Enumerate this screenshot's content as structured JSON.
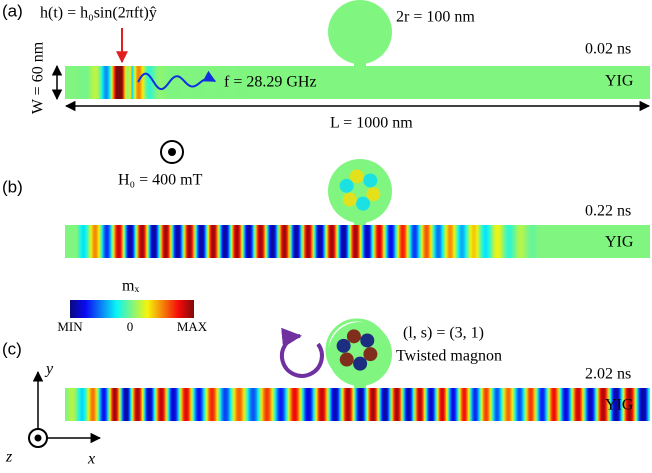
{
  "panels": [
    {
      "label": "(a)",
      "equation": "h(t)  =  h₀sin(2πft)ŷ",
      "diameter": "2r = 100 nm",
      "time": "0.02 ns",
      "material": "YIG",
      "width": "W = 60 nm",
      "frequency": "f = 28.29 GHz",
      "length": "L = 1000 nm"
    },
    {
      "label": "(b)",
      "field": "H₀ = 400 mT",
      "time": "0.22 ns",
      "material": "YIG"
    },
    {
      "label": "(c)",
      "mode": "(l, s) = (3, 1)",
      "mode_name": "Twisted magnon",
      "time": "2.02 ns",
      "material": "YIG"
    }
  ],
  "colorbar": {
    "title": "mₓ",
    "min": "MIN",
    "mid": "0",
    "max": "MAX"
  },
  "axes": {
    "y": "y",
    "z": "z",
    "x": "x"
  }
}
